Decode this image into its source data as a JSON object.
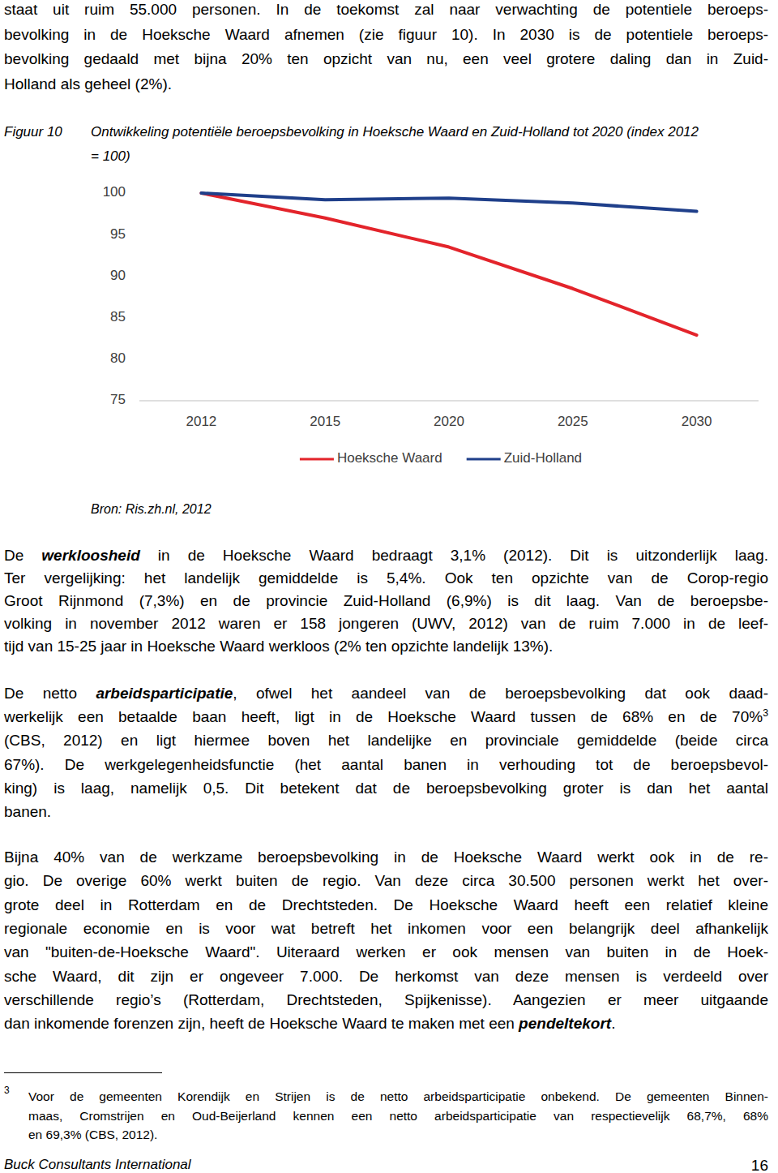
{
  "page": {
    "intro": [
      [
        "staat uit ruim 55.000 personen. In de toekomst zal naar verwachting de potentiele beroeps-"
      ],
      [
        "bevolking in de Hoeksche Waard afnemen (zie figuur 10). In 2030 is de potentiele beroeps-"
      ],
      [
        "bevolking gedaald met bijna 20% ten opzicht van nu, een veel grotere daling dan in Zuid-"
      ],
      [
        "Holland als geheel (2%)."
      ]
    ],
    "figure": {
      "label": "Figuur 10",
      "caption": [
        "Ontwikkeling potentiële beroepsbevolking in Hoeksche Waard en Zuid-Holland tot 2020 (index 2012",
        "= 100)"
      ],
      "source": "Bron: Ris.zh.nl, 2012"
    },
    "paragraphs": [
      {
        "lines": [
          [
            "De ",
            {
              "text": "werkloosheid",
              "style": "emphasis"
            },
            " in de Hoeksche Waard bedraagt 3,1% (2012). Dit is uitzonderlijk laag."
          ],
          [
            "Ter vergelijking: het landelijk gemiddelde is 5,4%. Ook ten opzichte van de Corop-regio"
          ],
          [
            "Groot Rijnmond (7,3%) en de provincie Zuid-Holland (6,9%) is dit laag. Van de beroepsbe-"
          ],
          [
            "volking in november 2012 waren er 158 jongeren (UWV, 2012) van de ruim 7.000 in de leef-"
          ],
          [
            "tijd van 15-25 jaar in Hoeksche Waard werkloos (2% ten opzichte landelijk 13%)."
          ]
        ]
      },
      {
        "lines": [
          [
            "De netto ",
            {
              "text": "arbeidsparticipatie",
              "style": "emphasis"
            },
            ", ofwel het aandeel van de beroepsbevolking dat ook daad-"
          ],
          [
            "werkelijk een betaalde baan heeft, ligt in de Hoeksche Waard tussen de 68% en de 70%",
            {
              "text": "3",
              "style": "footnote-ref"
            }
          ],
          [
            "(CBS, 2012) en ligt hiermee boven het landelijke en provinciale gemiddelde (beide circa"
          ],
          [
            "67%). De werkgelegenheidsfunctie (het aantal banen in verhouding tot de beroepsbevol-"
          ],
          [
            "king) is laag, namelijk 0,5. Dit betekent dat de beroepsbevolking groter is dan het aantal"
          ],
          [
            "banen."
          ]
        ]
      },
      {
        "lines": [
          [
            "Bijna 40% van de werkzame beroepsbevolking in de Hoeksche Waard werkt ook in de re-"
          ],
          [
            "gio. De overige 60% werkt buiten de regio. Van deze circa 30.500 personen werkt het over-"
          ],
          [
            "grote deel in Rotterdam en de Drechtsteden. De Hoeksche Waard heeft een relatief kleine"
          ],
          [
            "regionale economie en is voor wat betreft het inkomen  voor een belangrijk deel afhankelijk"
          ],
          [
            "van \"buiten-de-Hoeksche Waard\". Uiteraard werken er ook mensen van buiten in de Hoek-"
          ],
          [
            "sche Waard, dit zijn er ongeveer 7.000. De herkomst van deze mensen is verdeeld over"
          ],
          [
            "verschillende regio’s (Rotterdam, Drechtsteden, Spijkenisse). Aangezien er meer uitgaande"
          ],
          [
            "dan inkomende forenzen zijn, heeft de Hoeksche Waard te maken met een ",
            {
              "text": "pendeltekort",
              "style": "emphasis"
            },
            "."
          ]
        ]
      }
    ],
    "footnote": {
      "marker": "3",
      "lines": [
        [
          "Voor de gemeenten Korendijk en Strijen is de netto arbeidsparticipatie onbekend. De gemeenten Binnen-"
        ],
        [
          "maas, Cromstrijen en Oud-Beijerland kennen een netto arbeidsparticipatie van respectievelijk 68,7%, 68%"
        ],
        [
          "en 69,3% (CBS, 2012)."
        ]
      ]
    },
    "footer": {
      "left": "Buck Consultants International",
      "page_number": "16"
    }
  },
  "chart_data": {
    "type": "line",
    "categories": [
      "2012",
      "2015",
      "2020",
      "2025",
      "2030"
    ],
    "series": [
      {
        "name": "Hoeksche Waard",
        "color": "#e3242b",
        "values": [
          100,
          97.0,
          93.5,
          88.5,
          82.9
        ]
      },
      {
        "name": "Zuid-Holland",
        "color": "#1f3f8a",
        "values": [
          100,
          99.2,
          99.4,
          98.8,
          97.8
        ]
      }
    ],
    "ylim": [
      75,
      100
    ],
    "yticks": [
      75,
      80,
      85,
      90,
      95,
      100
    ],
    "grid": false,
    "legend": "bottom"
  }
}
